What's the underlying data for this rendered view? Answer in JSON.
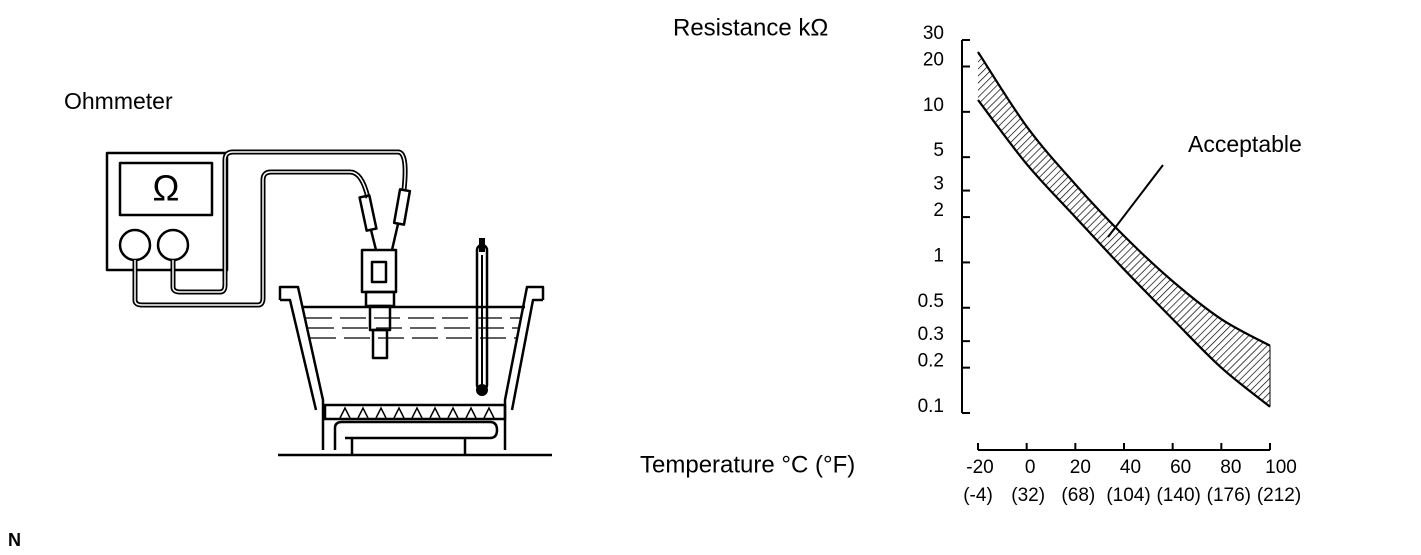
{
  "labels": {
    "ohmmeter": "Ohmmeter",
    "meter_symbol": "Ω",
    "corner": "N"
  },
  "chart_data": {
    "type": "band",
    "ylabel": "Resistance kΩ",
    "xlabel": "Temperature °C (°F)",
    "annotation": "Acceptable",
    "x": [
      -20,
      0,
      20,
      40,
      60,
      80,
      100
    ],
    "series": [
      {
        "color": "#000000",
        "values": [
          25,
          8,
          3.3,
          1.5,
          0.75,
          0.42,
          0.28
        ]
      },
      {
        "color": "#000000",
        "values": [
          12,
          4.5,
          2,
          0.9,
          0.42,
          0.2,
          0.11
        ]
      }
    ],
    "xlim": [
      -20,
      100
    ],
    "xticks": [
      -20,
      0,
      20,
      40,
      60,
      80,
      100
    ],
    "x2ticks": [
      {
        "value": -20,
        "label": "(-4)"
      },
      {
        "value": 0,
        "label": "(32)"
      },
      {
        "value": 20,
        "label": "(68)"
      },
      {
        "value": 40,
        "label": "(104)"
      },
      {
        "value": 60,
        "label": "(140)"
      },
      {
        "value": 80,
        "label": "(176)"
      },
      {
        "value": 100,
        "label": "(212)"
      }
    ],
    "ylim": [
      0.1,
      30
    ],
    "yticks": [
      0.1,
      0.2,
      0.3,
      0.5,
      1,
      2,
      3,
      5,
      10,
      20,
      30
    ],
    "log_scale": true,
    "hatched": true
  }
}
